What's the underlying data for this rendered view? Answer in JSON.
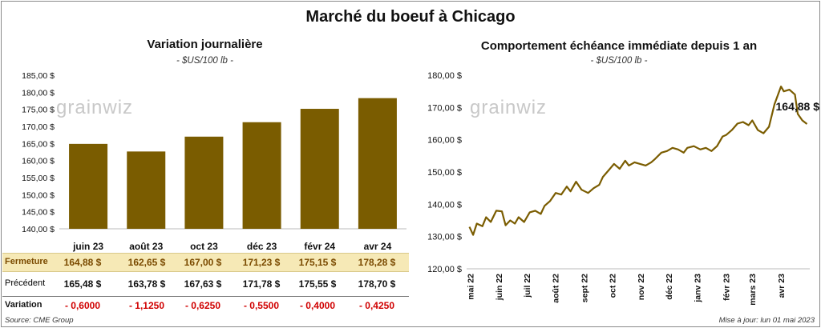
{
  "header": {
    "title": "Marché du boeuf à Chicago"
  },
  "left_panel": {
    "title": "Variation journalière",
    "unit": "- $US/100 lb -"
  },
  "right_panel": {
    "title": "Comportement échéance immédiate depuis 1 an",
    "unit": "- $US/100 lb -"
  },
  "watermark": "grainwiz",
  "table": {
    "rows": [
      {
        "label": "Fermeture",
        "values": [
          "164,88  $",
          "162,65  $",
          "167,00  $",
          "171,23  $",
          "175,15  $",
          "178,28  $"
        ]
      },
      {
        "label": "Précédent",
        "values": [
          "165,48  $",
          "163,78  $",
          "167,63  $",
          "171,78  $",
          "175,55  $",
          "178,70  $"
        ]
      },
      {
        "label": "Variation",
        "values": [
          "- 0,6000",
          "- 1,1250",
          "- 0,6250",
          "- 0,5500",
          "- 0,4000",
          "- 0,4250"
        ]
      }
    ]
  },
  "footer": {
    "source": "Source: CME Group",
    "updated": "Mise à jour: lun 01 mai 2023"
  },
  "colors": {
    "bar": "#7a5c00",
    "line": "#7a5c00",
    "close_row_bg": "#f6e9b6",
    "variation_text": "#d00000"
  },
  "chart_data": [
    {
      "type": "bar",
      "title": "Variation journalière",
      "categories": [
        "juin 23",
        "août 23",
        "oct 23",
        "déc 23",
        "févr 24",
        "avr 24"
      ],
      "values": [
        164.88,
        162.65,
        167.0,
        171.23,
        175.15,
        178.28
      ],
      "ylim": [
        140,
        185
      ],
      "yticks": [
        "140,00 $",
        "145,00 $",
        "150,00 $",
        "155,00 $",
        "160,00 $",
        "165,00 $",
        "170,00 $",
        "175,00 $",
        "180,00 $",
        "185,00 $"
      ],
      "grid": false
    },
    {
      "type": "line",
      "title": "Comportement échéance immédiate depuis 1 an",
      "ylim": [
        120,
        180
      ],
      "yticks": [
        "120,00 $",
        "130,00 $",
        "140,00 $",
        "150,00 $",
        "160,00 $",
        "170,00 $",
        "180,00 $"
      ],
      "xticks": [
        "mai 22",
        "juin 22",
        "juil 22",
        "août 22",
        "sept 22",
        "oct 22",
        "nov 22",
        "déc 22",
        "janv 23",
        "févr 23",
        "mars 23",
        "avr 23"
      ],
      "x": [
        "2022-05-02",
        "2022-05-06",
        "2022-05-10",
        "2022-05-16",
        "2022-05-20",
        "2022-05-25",
        "2022-05-31",
        "2022-06-06",
        "2022-06-10",
        "2022-06-15",
        "2022-06-20",
        "2022-06-24",
        "2022-06-30",
        "2022-07-06",
        "2022-07-12",
        "2022-07-18",
        "2022-07-22",
        "2022-07-28",
        "2022-08-03",
        "2022-08-09",
        "2022-08-15",
        "2022-08-19",
        "2022-08-25",
        "2022-08-31",
        "2022-09-07",
        "2022-09-13",
        "2022-09-19",
        "2022-09-23",
        "2022-09-29",
        "2022-10-05",
        "2022-10-11",
        "2022-10-17",
        "2022-10-21",
        "2022-10-27",
        "2022-11-02",
        "2022-11-08",
        "2022-11-14",
        "2022-11-18",
        "2022-11-25",
        "2022-12-01",
        "2022-12-07",
        "2022-12-13",
        "2022-12-19",
        "2022-12-23",
        "2022-12-30",
        "2023-01-06",
        "2023-01-12",
        "2023-01-18",
        "2023-01-24",
        "2023-01-30",
        "2023-02-03",
        "2023-02-09",
        "2023-02-15",
        "2023-02-21",
        "2023-02-27",
        "2023-03-03",
        "2023-03-09",
        "2023-03-15",
        "2023-03-21",
        "2023-03-27",
        "2023-04-03",
        "2023-04-06",
        "2023-04-12",
        "2023-04-18",
        "2023-04-21",
        "2023-04-26",
        "2023-05-01"
      ],
      "values": [
        133.0,
        130.5,
        134.0,
        133.2,
        136.0,
        134.5,
        138.0,
        137.8,
        133.5,
        135.0,
        134.0,
        136.0,
        134.5,
        137.5,
        138.0,
        137.0,
        139.5,
        141.0,
        143.5,
        143.0,
        145.5,
        144.0,
        147.0,
        144.5,
        143.5,
        145.0,
        146.0,
        148.5,
        150.5,
        152.5,
        151.0,
        153.5,
        152.0,
        153.0,
        152.5,
        152.0,
        153.0,
        154.0,
        156.0,
        156.5,
        157.5,
        157.0,
        156.0,
        157.5,
        158.0,
        157.0,
        157.5,
        156.5,
        158.0,
        161.0,
        161.5,
        163.0,
        165.0,
        165.5,
        164.5,
        166.0,
        163.0,
        162.0,
        164.0,
        171.0,
        176.5,
        175.0,
        175.5,
        174.0,
        168.0,
        166.0,
        164.88
      ],
      "annotation": "164,88 $",
      "grid": false
    }
  ]
}
